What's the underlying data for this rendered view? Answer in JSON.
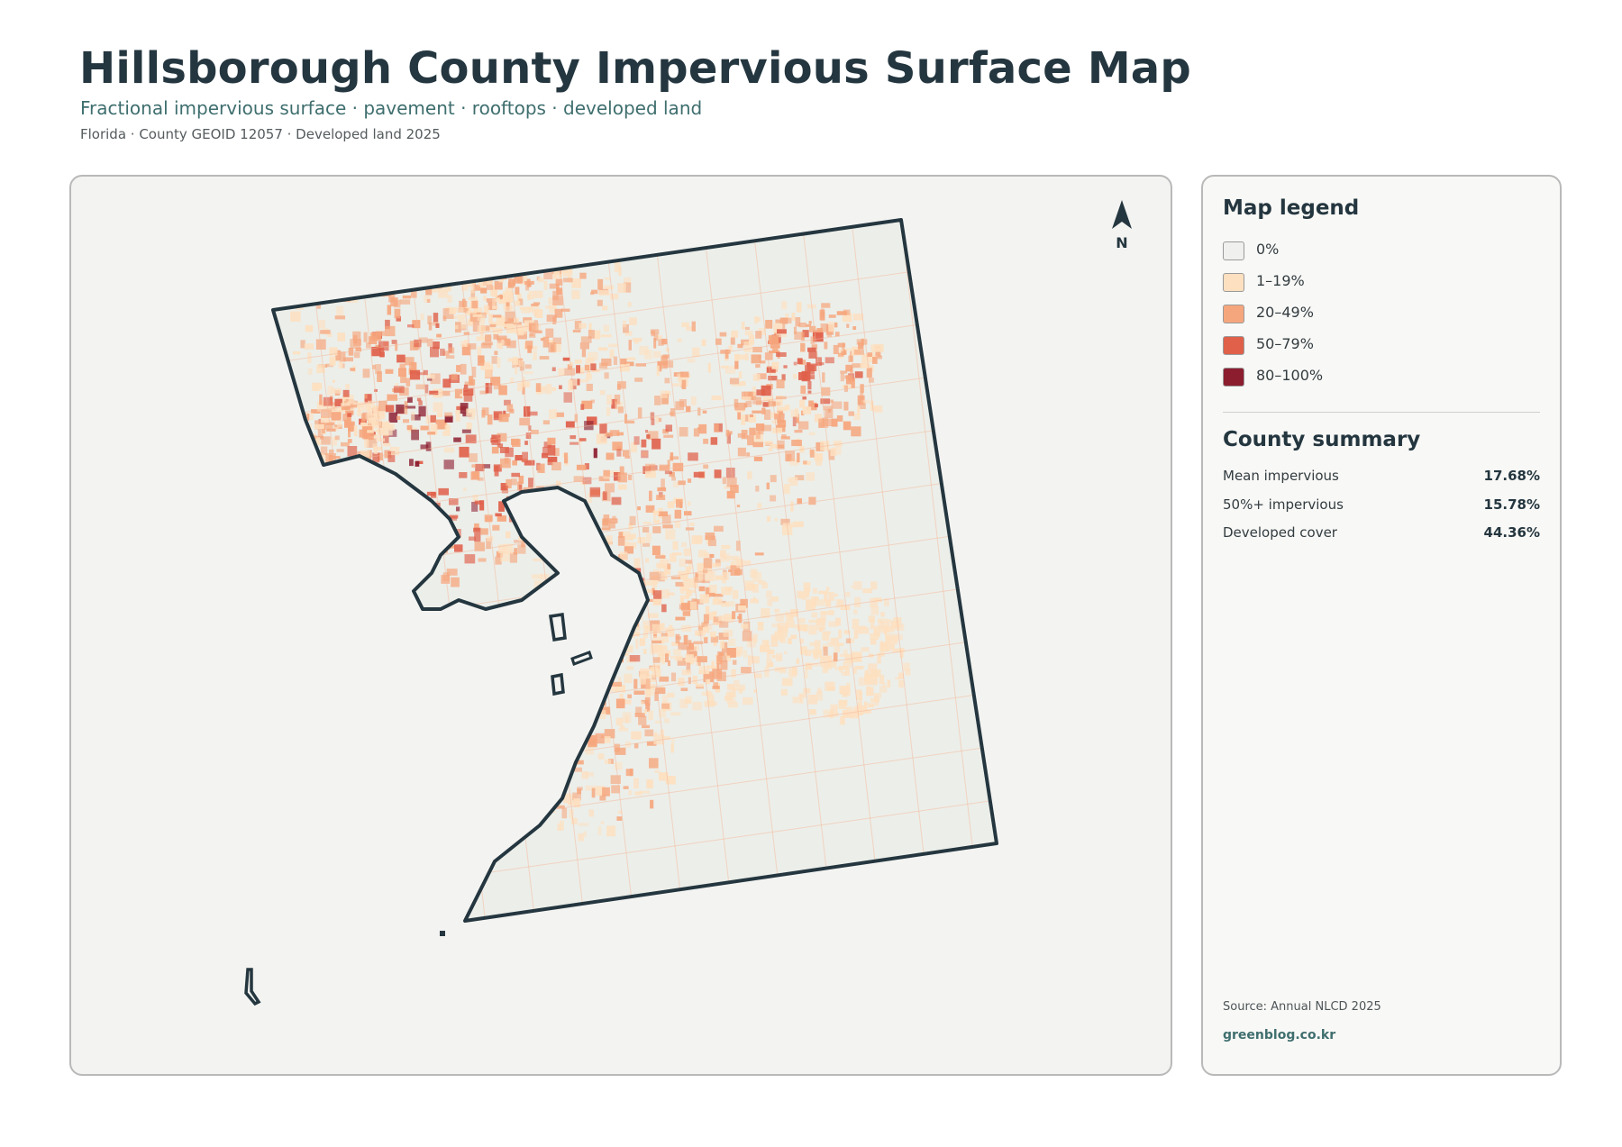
{
  "header": {
    "title": "Hillsborough County Impervious Surface Map",
    "subtitle": "Fractional impervious surface · pavement · rooftops · developed land",
    "meta": "Florida · County GEOID 12057 · Developed land 2025"
  },
  "map": {
    "north_label": "N",
    "colors": {
      "background": "#f3f3f1",
      "county_fill": "#eceee9",
      "boundary": "#24363f",
      "water": "#f3f3f1"
    }
  },
  "legend": {
    "title": "Map legend",
    "items": [
      {
        "label": "0%",
        "color": "#f0f0ee"
      },
      {
        "label": "1–19%",
        "color": "#fde0c0"
      },
      {
        "label": "20–49%",
        "color": "#f6a67d"
      },
      {
        "label": "50–79%",
        "color": "#e0604a"
      },
      {
        "label": "80–100%",
        "color": "#8c1d2f"
      }
    ]
  },
  "summary": {
    "title": "County summary",
    "rows": [
      {
        "label": "Mean impervious",
        "value": "17.68%"
      },
      {
        "label": "50%+ impervious",
        "value": "15.78%"
      },
      {
        "label": "Developed cover",
        "value": "44.36%"
      }
    ]
  },
  "footer": {
    "source": "Source: Annual NLCD 2025",
    "credit": "greenblog.co.kr"
  }
}
